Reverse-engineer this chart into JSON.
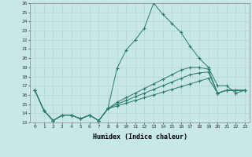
{
  "xlabel": "Humidex (Indice chaleur)",
  "ylabel": "",
  "bg_color": "#c8e8e8",
  "grid_color": "#b8d4d4",
  "line_color": "#2a7a6a",
  "xlim": [
    -0.5,
    23.5
  ],
  "ylim": [
    13,
    26
  ],
  "yticks": [
    13,
    14,
    15,
    16,
    17,
    18,
    19,
    20,
    21,
    22,
    23,
    24,
    25,
    26
  ],
  "xticks": [
    0,
    1,
    2,
    3,
    4,
    5,
    6,
    7,
    8,
    9,
    10,
    11,
    12,
    13,
    14,
    15,
    16,
    17,
    18,
    19,
    20,
    21,
    22,
    23
  ],
  "line1_x": [
    0,
    1,
    2,
    3,
    4,
    5,
    6,
    7,
    8,
    9,
    10,
    11,
    12,
    13,
    14,
    15,
    16,
    17,
    18,
    19,
    20,
    21,
    22,
    23
  ],
  "line1_y": [
    16.5,
    14.3,
    13.2,
    13.8,
    13.8,
    13.4,
    13.8,
    13.2,
    14.5,
    18.9,
    20.9,
    22.0,
    23.3,
    26.0,
    24.8,
    23.8,
    22.8,
    21.3,
    20.0,
    19.0,
    17.0,
    17.0,
    16.2,
    16.5
  ],
  "line2_x": [
    0,
    1,
    2,
    3,
    4,
    5,
    6,
    7,
    8,
    9,
    10,
    11,
    12,
    13,
    14,
    15,
    16,
    17,
    18,
    19,
    20,
    21,
    22,
    23
  ],
  "line2_y": [
    16.5,
    14.3,
    13.2,
    13.8,
    13.8,
    13.4,
    13.8,
    13.2,
    14.5,
    15.2,
    15.7,
    16.2,
    16.7,
    17.2,
    17.7,
    18.2,
    18.7,
    19.0,
    19.0,
    18.8,
    16.2,
    16.5,
    16.5,
    16.5
  ],
  "line3_x": [
    0,
    1,
    2,
    3,
    4,
    5,
    6,
    7,
    8,
    9,
    10,
    11,
    12,
    13,
    14,
    15,
    16,
    17,
    18,
    19,
    20,
    21,
    22,
    23
  ],
  "line3_y": [
    16.5,
    14.3,
    13.2,
    13.8,
    13.8,
    13.4,
    13.8,
    13.2,
    14.5,
    15.0,
    15.4,
    15.8,
    16.2,
    16.6,
    17.0,
    17.4,
    17.8,
    18.2,
    18.4,
    18.5,
    16.2,
    16.5,
    16.5,
    16.5
  ],
  "line4_x": [
    0,
    1,
    2,
    3,
    4,
    5,
    6,
    7,
    8,
    9,
    10,
    11,
    12,
    13,
    14,
    15,
    16,
    17,
    18,
    19,
    20,
    21,
    22,
    23
  ],
  "line4_y": [
    16.5,
    14.3,
    13.2,
    13.8,
    13.8,
    13.4,
    13.8,
    13.2,
    14.5,
    14.8,
    15.1,
    15.4,
    15.7,
    16.0,
    16.3,
    16.6,
    16.9,
    17.2,
    17.5,
    17.8,
    16.2,
    16.5,
    16.5,
    16.5
  ]
}
